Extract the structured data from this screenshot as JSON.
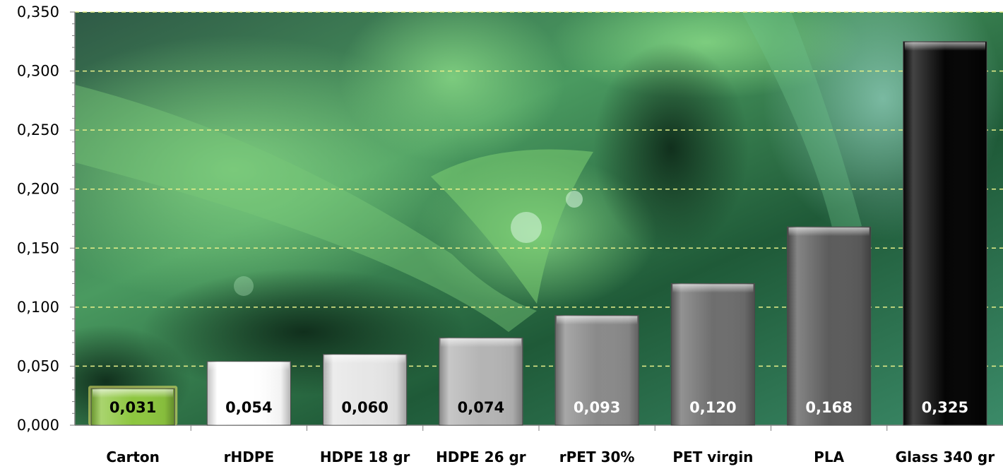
{
  "chart_data": {
    "type": "bar",
    "title": "",
    "xlabel": "",
    "ylabel": "",
    "categories": [
      "Carton",
      "rHDPE",
      "HDPE 18 gr",
      "HDPE 26 gr",
      "rPET 30%",
      "PET virgin",
      "PLA",
      "Glass 340 gr"
    ],
    "values": [
      0.031,
      0.054,
      0.06,
      0.074,
      0.093,
      0.12,
      0.168,
      0.325
    ],
    "value_labels": [
      "0,031",
      "0,054",
      "0,060",
      "0,074",
      "0,093",
      "0,120",
      "0,168",
      "0,325"
    ],
    "ylim": [
      0,
      0.35
    ],
    "yticks": [
      0,
      0.05,
      0.1,
      0.15,
      0.2,
      0.25,
      0.3,
      0.35
    ],
    "ytick_labels": [
      "0,000",
      "0,050",
      "0,100",
      "0,150",
      "0,200",
      "0,250",
      "0,300",
      "0,350"
    ],
    "grid": "horizontal dashed",
    "bar_colors": [
      "#8dc63f",
      "#ffffff",
      "#e6e6e6",
      "#b4b4b4",
      "#8a8a8a",
      "#6e6e6e",
      "#5c5c5c",
      "#050505"
    ],
    "label_colors": [
      "#000000",
      "#000000",
      "#000000",
      "#000000",
      "#ffffff",
      "#ffffff",
      "#ffffff",
      "#ffffff"
    ],
    "background": "green leaves photo with water droplets",
    "grid_color": "#e8f08a"
  }
}
